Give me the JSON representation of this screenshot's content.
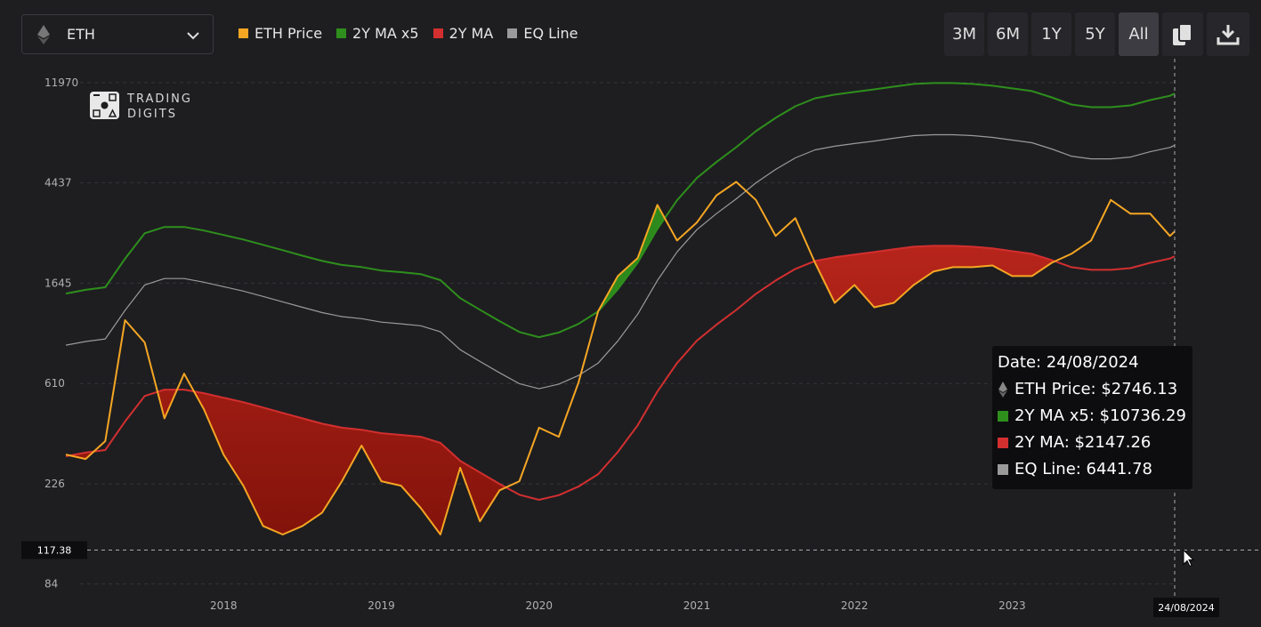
{
  "ui": {
    "asset": "ETH",
    "ranges": [
      "3M",
      "6M",
      "1Y",
      "5Y",
      "All"
    ],
    "active_range": "All",
    "logo": [
      "TRADING",
      "DIGITS"
    ]
  },
  "chart_data": {
    "type": "line",
    "log_scale": true,
    "grid": true,
    "x": [
      2017,
      2017.125,
      2017.25,
      2017.375,
      2017.5,
      2017.625,
      2017.75,
      2017.875,
      2018,
      2018.125,
      2018.25,
      2018.375,
      2018.5,
      2018.625,
      2018.75,
      2018.875,
      2019,
      2019.125,
      2019.25,
      2019.375,
      2019.5,
      2019.625,
      2019.75,
      2019.875,
      2020,
      2020.125,
      2020.25,
      2020.375,
      2020.5,
      2020.625,
      2020.75,
      2020.875,
      2021,
      2021.125,
      2021.25,
      2021.375,
      2021.5,
      2021.625,
      2021.75,
      2021.875,
      2022,
      2022.125,
      2022.25,
      2022.375,
      2022.5,
      2022.625,
      2022.75,
      2022.875,
      2023,
      2023.125,
      2023.25,
      2023.375,
      2023.5,
      2023.625,
      2023.75,
      2023.875,
      2024,
      2024.03
    ],
    "xlim": [
      2017,
      2024.03
    ],
    "xticks": [
      2018,
      2019,
      2020,
      2021,
      2022,
      2023
    ],
    "ylim": [
      78,
      13400
    ],
    "yticks": [
      84,
      226,
      610,
      1645,
      4437,
      11970
    ],
    "series": [
      {
        "name": "ETH Price",
        "color": "#f5a623",
        "values": [
          302,
          289,
          345,
          1141,
          915,
          432,
          672,
          473,
          302,
          222,
          149,
          137,
          149,
          170,
          232,
          330,
          232,
          222,
          178,
          137,
          265,
          156,
          212,
          232,
          394,
          360,
          615,
          1247,
          1765,
          2106,
          3570,
          2510,
          2995,
          3920,
          4480,
          3750,
          2625,
          3130,
          2013,
          1355,
          1617,
          1297,
          1355,
          1617,
          1845,
          1927,
          1927,
          1960,
          1765,
          1765,
          2013,
          2200,
          2510,
          3750,
          3270,
          3270,
          2625,
          2746.13
        ]
      },
      {
        "name": "2Y MA x5",
        "color": "#2e8f1c",
        "values": [
          1485,
          1540,
          1580,
          2095,
          2695,
          2870,
          2870,
          2770,
          2650,
          2535,
          2405,
          2280,
          2160,
          2050,
          1970,
          1930,
          1865,
          1835,
          1800,
          1695,
          1420,
          1265,
          1130,
          1015,
          965,
          1010,
          1100,
          1245,
          1550,
          2015,
          2815,
          3735,
          4655,
          5455,
          6315,
          7400,
          8445,
          9470,
          10250,
          10625,
          10910,
          11190,
          11500,
          11805,
          11910,
          11910,
          11805,
          11600,
          11295,
          11000,
          10340,
          9635,
          9385,
          9385,
          9550,
          10065,
          10500,
          10736.29
        ]
      },
      {
        "name": "2Y MA",
        "color": "#d32f2f",
        "values": [
          297,
          308,
          316,
          419,
          539,
          574,
          574,
          554,
          530,
          507,
          481,
          456,
          432,
          410,
          394,
          386,
          373,
          367,
          360,
          339,
          284,
          253,
          226,
          203,
          193,
          202,
          220,
          249,
          310,
          403,
          563,
          747,
          931,
          1091,
          1263,
          1480,
          1689,
          1894,
          2050,
          2125,
          2182,
          2238,
          2300,
          2361,
          2382,
          2382,
          2361,
          2320,
          2259,
          2200,
          2068,
          1927,
          1877,
          1877,
          1910,
          2013,
          2100,
          2147.26
        ]
      },
      {
        "name": "EQ Line",
        "color": "#9a9a9a",
        "values": [
          891,
          924,
          948,
          1257,
          1617,
          1722,
          1722,
          1662,
          1590,
          1521,
          1443,
          1368,
          1296,
          1230,
          1182,
          1158,
          1119,
          1101,
          1080,
          1017,
          852,
          759,
          678,
          609,
          579,
          606,
          660,
          747,
          930,
          1209,
          1689,
          2241,
          2793,
          3273,
          3789,
          4440,
          5067,
          5682,
          6150,
          6375,
          6546,
          6714,
          6900,
          7083,
          7146,
          7146,
          7083,
          6960,
          6777,
          6600,
          6204,
          5781,
          5631,
          5631,
          5730,
          6039,
          6300,
          6441.78
        ]
      }
    ],
    "crosshair": {
      "date": "24/08/2024",
      "y": 117.38
    },
    "tooltip": {
      "title": "Date: 24/08/2024",
      "rows": [
        "ETH Price: $2746.13",
        "2Y MA x5: $10736.29",
        "2Y MA: $2147.26",
        "EQ Line: 6441.78"
      ]
    }
  }
}
